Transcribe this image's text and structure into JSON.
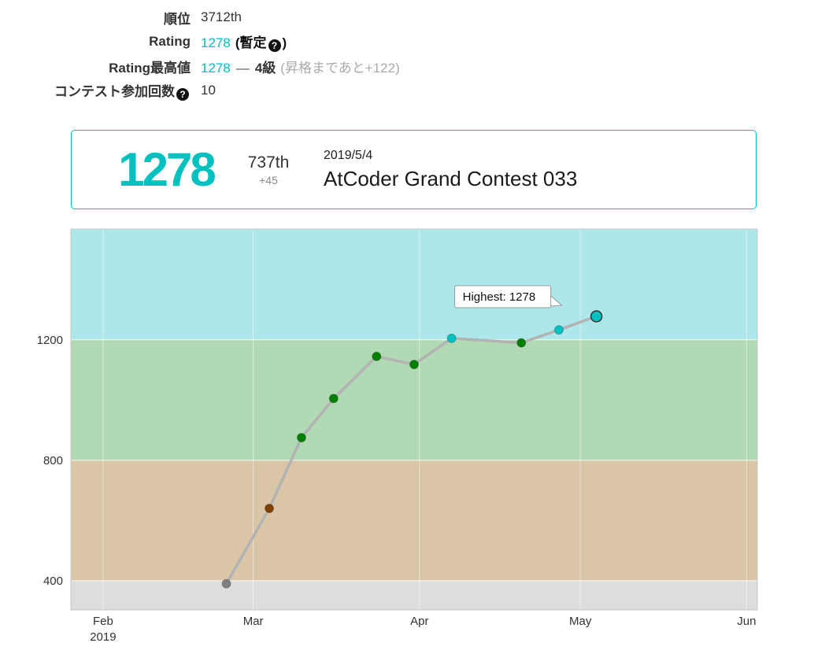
{
  "colors": {
    "accent": "#00c0c0",
    "text_dark": "#333333",
    "muted": "#aaaaaa"
  },
  "stats": {
    "rank_label": "順位",
    "rank_value": "3712th",
    "rating_label": "Rating",
    "rating_value": "1278",
    "provisional_open": "(暫定",
    "provisional_close": ")",
    "help_icon": "?",
    "highest_label": "Rating最高値",
    "highest_value": "1278",
    "highest_sep": "—",
    "highest_grade": "4級",
    "highest_note": "(昇格まであと+122)",
    "contests_label": "コンテスト参加回数",
    "contests_value": "10"
  },
  "latest": {
    "rating": "1278",
    "place": "737th",
    "delta": "+45",
    "date": "2019/5/4",
    "contest": "AtCoder Grand Contest 033"
  },
  "chart_data": {
    "type": "line",
    "xlim": [
      "2019-01-26",
      "2019-06-03"
    ],
    "ylim": [
      303,
      1568
    ],
    "grid": true,
    "legend": "none",
    "x_ticks": [
      {
        "date": "2019-02-01",
        "label": "Feb",
        "sublabel": "2019"
      },
      {
        "date": "2019-03-01",
        "label": "Mar"
      },
      {
        "date": "2019-04-01",
        "label": "Apr"
      },
      {
        "date": "2019-05-01",
        "label": "May"
      },
      {
        "date": "2019-06-01",
        "label": "Jun"
      }
    ],
    "y_ticks": [
      400,
      800,
      1200
    ],
    "bands": [
      {
        "from": 303,
        "to": 400,
        "color": "#dddddd"
      },
      {
        "from": 400,
        "to": 800,
        "color": "#dac5a7"
      },
      {
        "from": 800,
        "to": 1200,
        "color": "#b0d9b4"
      },
      {
        "from": 1200,
        "to": 1568,
        "color": "#aee7ea"
      }
    ],
    "line_color": "#b3b3b3",
    "series": [
      {
        "name": "Rating",
        "points": [
          {
            "date": "2019-02-24",
            "rating": 390,
            "color": "#808080"
          },
          {
            "date": "2019-03-04",
            "rating": 640,
            "color": "#804000"
          },
          {
            "date": "2019-03-10",
            "rating": 875,
            "color": "#008000"
          },
          {
            "date": "2019-03-16",
            "rating": 1005,
            "color": "#008000"
          },
          {
            "date": "2019-03-24",
            "rating": 1145,
            "color": "#008000"
          },
          {
            "date": "2019-03-31",
            "rating": 1118,
            "color": "#008000"
          },
          {
            "date": "2019-04-07",
            "rating": 1205,
            "color": "#00c0c0"
          },
          {
            "date": "2019-04-20",
            "rating": 1190,
            "color": "#008000"
          },
          {
            "date": "2019-04-27",
            "rating": 1233,
            "color": "#00c0c0"
          },
          {
            "date": "2019-05-04",
            "rating": 1278,
            "color": "#00c0c0",
            "highlight": true
          }
        ]
      }
    ],
    "tooltip": {
      "text": "Highest: 1278"
    }
  }
}
